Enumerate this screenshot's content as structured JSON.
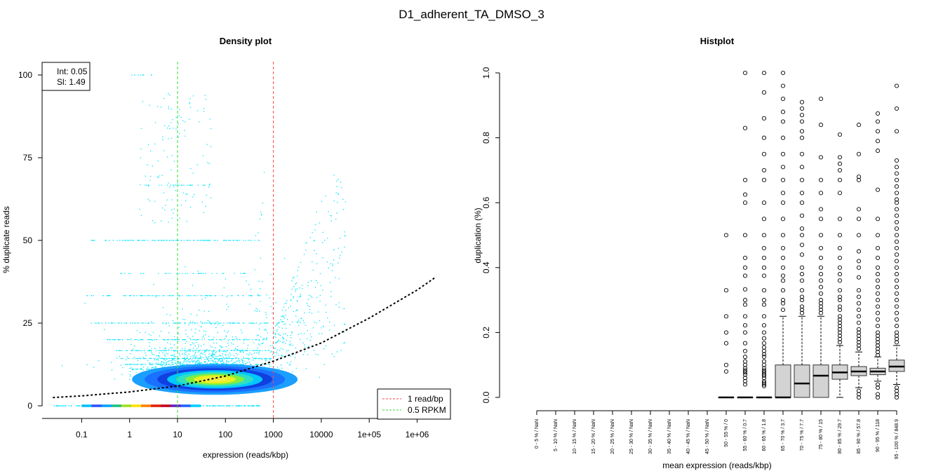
{
  "page_title": "D1_adherent_TA_DMSO_3",
  "colors": {
    "cyan": "#00e5ff",
    "ref_1_read_bp": "#ff4444",
    "ref_rpkm": "#33dd33",
    "fit_line": "#000000",
    "box_fill": "#d3d3d3"
  },
  "chart_data": [
    {
      "type": "scatter",
      "title": "Density plot",
      "xlabel": "expression (reads/kbp)",
      "ylabel": "% duplicate reads",
      "x_scale": "log10",
      "xlim": [
        0.01,
        5000000
      ],
      "ylim": [
        0,
        100
      ],
      "x_ticks": [
        0.1,
        1,
        10,
        100,
        1000,
        10000,
        100000,
        1000000
      ],
      "x_tick_labels": [
        "0.1",
        "1",
        "10",
        "100",
        "1000",
        "10000",
        "1e+05",
        "1e+06"
      ],
      "y_ticks": [
        0,
        25,
        50,
        75,
        100
      ],
      "y_tick_labels": [
        "0",
        "25",
        "50",
        "75",
        "100"
      ],
      "fit_box": {
        "int_label": "Int: 0.05",
        "sl_label": "Sl: 1.49"
      },
      "fit_curve": {
        "x": [
          0.025,
          0.1,
          1,
          10,
          100,
          1000,
          10000,
          100000,
          1000000,
          2500000
        ],
        "y": [
          2.5,
          3.0,
          4.2,
          6.0,
          9.0,
          13.5,
          19.0,
          26.5,
          35.0,
          39.0
        ]
      },
      "reference_lines": [
        {
          "name": "1 read/bp",
          "x": 1000,
          "color": "#ff4444",
          "style": "dashed"
        },
        {
          "name": "0.5 RPKM",
          "x": 10,
          "color": "#33dd33",
          "style": "dashed"
        }
      ],
      "legend": {
        "position": "bottom-right",
        "entries": [
          "1 read/bp",
          "0.5 RPKM"
        ]
      },
      "density_core": {
        "x_center": 60,
        "y_center": 8
      }
    },
    {
      "type": "box",
      "title": "Histplot",
      "xlabel": "mean expression (reads/kbp)",
      "ylabel": "duplication (%)",
      "ylim": [
        0,
        1.0
      ],
      "y_ticks": [
        0.0,
        0.2,
        0.4,
        0.6,
        0.8,
        1.0
      ],
      "y_tick_labels": [
        "0.0",
        "0.2",
        "0.4",
        "0.6",
        "0.8",
        "1.0"
      ],
      "categories": [
        "0 - 5 % / NaN",
        "5 - 10 % / NaN",
        "10 - 15 % / NaN",
        "15 - 20 % / NaN",
        "20 - 25 % / NaN",
        "25 - 30 % / NaN",
        "30 - 35 % / NaN",
        "35 - 40 % / NaN",
        "40 - 45 % / NaN",
        "45 - 50 % / NaN",
        "50 - 55 % / 0",
        "55 - 60 % / 0.7",
        "60 - 65 % / 1.8",
        "65 - 70 % / 3.7",
        "70 - 75 % / 7.7",
        "75 - 80 % / 15",
        "80 - 85 % / 29.7",
        "85 - 90 % / 57.8",
        "90 - 95 % / 118",
        "95 - 100 % / 848.9"
      ],
      "boxes": [
        null,
        null,
        null,
        null,
        null,
        null,
        null,
        null,
        null,
        null,
        {
          "q1": 0,
          "median": 0,
          "q3": 0,
          "whisker_low": 0,
          "whisker_high": 0,
          "outliers": [
            0.5,
            0.33,
            0.25,
            0.2,
            0.167,
            0.1,
            0.08
          ]
        },
        {
          "q1": 0,
          "median": 0,
          "q3": 0,
          "whisker_low": 0,
          "whisker_high": 0,
          "outliers": [
            1.0,
            0.83,
            0.67,
            0.625,
            0.6,
            0.5,
            0.43,
            0.4,
            0.375,
            0.333,
            0.3,
            0.286,
            0.25,
            0.222,
            0.2,
            0.167,
            0.143,
            0.125,
            0.111,
            0.1,
            0.09,
            0.083,
            0.077,
            0.07,
            0.06,
            0.05,
            0.04
          ]
        },
        {
          "q1": 0,
          "median": 0,
          "q3": 0,
          "whisker_low": 0,
          "whisker_high": 0,
          "outliers": [
            1.0,
            0.94,
            0.86,
            0.8,
            0.75,
            0.7,
            0.67,
            0.6,
            0.55,
            0.5,
            0.46,
            0.43,
            0.4,
            0.375,
            0.33,
            0.3,
            0.286,
            0.25,
            0.222,
            0.2,
            0.182,
            0.167,
            0.154,
            0.143,
            0.133,
            0.125,
            0.111,
            0.1,
            0.09,
            0.083,
            0.077,
            0.071,
            0.067,
            0.06,
            0.05,
            0.045,
            0.04,
            0.035
          ]
        },
        {
          "q1": 0,
          "median": 0.0,
          "q3": 0.1,
          "whisker_low": 0,
          "whisker_high": 0.25,
          "outliers": [
            1.0,
            0.96,
            0.92,
            0.88,
            0.85,
            0.8,
            0.75,
            0.71,
            0.67,
            0.63,
            0.6,
            0.55,
            0.5,
            0.46,
            0.43,
            0.4,
            0.375,
            0.36,
            0.33,
            0.3,
            0.29,
            0.27
          ]
        },
        {
          "q1": 0,
          "median": 0.043,
          "q3": 0.1,
          "whisker_low": 0,
          "whisker_high": 0.25,
          "outliers": [
            0.91,
            0.89,
            0.87,
            0.85,
            0.82,
            0.8,
            0.75,
            0.71,
            0.67,
            0.63,
            0.6,
            0.56,
            0.52,
            0.5,
            0.47,
            0.44,
            0.4,
            0.38,
            0.36,
            0.33,
            0.31,
            0.3,
            0.28,
            0.27,
            0.26
          ]
        },
        {
          "q1": 0,
          "median": 0.067,
          "q3": 0.1,
          "whisker_low": 0,
          "whisker_high": 0.25,
          "outliers": [
            0.92,
            0.84,
            0.74,
            0.67,
            0.63,
            0.58,
            0.55,
            0.5,
            0.46,
            0.43,
            0.4,
            0.38,
            0.36,
            0.34,
            0.32,
            0.3,
            0.29,
            0.28,
            0.27,
            0.26
          ]
        },
        {
          "q1": 0.056,
          "median": 0.077,
          "q3": 0.1,
          "whisker_low": 0,
          "whisker_high": 0.16,
          "outliers": [
            0.81,
            0.74,
            0.72,
            0.7,
            0.67,
            0.63,
            0.55,
            0.5,
            0.46,
            0.43,
            0.4,
            0.38,
            0.36,
            0.33,
            0.31,
            0.3,
            0.28,
            0.27,
            0.25,
            0.24,
            0.23,
            0.22,
            0.21,
            0.2,
            0.19,
            0.18,
            0.17
          ]
        },
        {
          "q1": 0.067,
          "median": 0.08,
          "q3": 0.095,
          "whisker_low": 0.03,
          "whisker_high": 0.14,
          "outliers": [
            0.84,
            0.75,
            0.68,
            0.67,
            0.58,
            0.55,
            0.5,
            0.45,
            0.42,
            0.4,
            0.37,
            0.33,
            0.31,
            0.29,
            0.27,
            0.25,
            0.23,
            0.21,
            0.2,
            0.19,
            0.18,
            0.17,
            0.16,
            0.15,
            0.02,
            0.01,
            0.0
          ]
        },
        {
          "q1": 0.07,
          "median": 0.08,
          "q3": 0.09,
          "whisker_low": 0.05,
          "whisker_high": 0.125,
          "outliers": [
            0.875,
            0.85,
            0.82,
            0.79,
            0.76,
            0.64,
            0.55,
            0.5,
            0.46,
            0.43,
            0.4,
            0.38,
            0.36,
            0.34,
            0.32,
            0.3,
            0.28,
            0.26,
            0.24,
            0.22,
            0.2,
            0.19,
            0.18,
            0.17,
            0.16,
            0.15,
            0.14,
            0.13,
            0.04,
            0.03,
            0.01,
            0.0
          ]
        },
        {
          "q1": 0.08,
          "median": 0.095,
          "q3": 0.115,
          "whisker_low": 0.04,
          "whisker_high": 0.16,
          "outliers": [
            0.96,
            0.89,
            0.82,
            0.73,
            0.71,
            0.69,
            0.67,
            0.65,
            0.63,
            0.61,
            0.6,
            0.58,
            0.56,
            0.54,
            0.52,
            0.5,
            0.48,
            0.46,
            0.44,
            0.42,
            0.4,
            0.38,
            0.36,
            0.34,
            0.32,
            0.3,
            0.28,
            0.26,
            0.24,
            0.22,
            0.2,
            0.19,
            0.18,
            0.17,
            0.03,
            0.02,
            0.01,
            0.0
          ]
        }
      ]
    }
  ]
}
